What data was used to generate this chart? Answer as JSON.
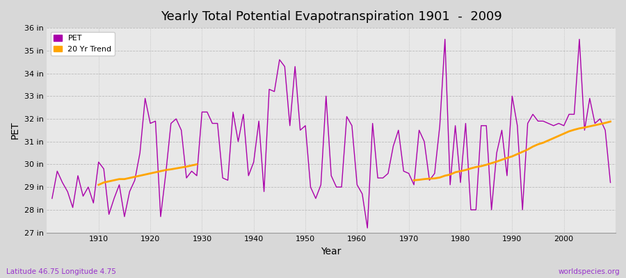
{
  "title": "Yearly Total Potential Evapotranspiration 1901  -  2009",
  "xlabel": "Year",
  "ylabel": "PET",
  "subtitle": "Latitude 46.75 Longitude 4.75",
  "watermark": "worldspecies.org",
  "ylim": [
    27,
    36
  ],
  "ytick_labels": [
    "27 in",
    "28 in",
    "29 in",
    "30 in",
    "31 in",
    "32 in",
    "33 in",
    "34 in",
    "35 in",
    "36 in"
  ],
  "ytick_values": [
    27,
    28,
    29,
    30,
    31,
    32,
    33,
    34,
    35,
    36
  ],
  "pet_color": "#AA00AA",
  "trend_color": "#FFA500",
  "fig_bg_color": "#D8D8D8",
  "plot_bg_color": "#E8E8E8",
  "years": [
    1901,
    1902,
    1903,
    1904,
    1905,
    1906,
    1907,
    1908,
    1909,
    1910,
    1911,
    1912,
    1913,
    1914,
    1915,
    1916,
    1917,
    1918,
    1919,
    1920,
    1921,
    1922,
    1923,
    1924,
    1925,
    1926,
    1927,
    1928,
    1929,
    1930,
    1931,
    1932,
    1933,
    1934,
    1935,
    1936,
    1937,
    1938,
    1939,
    1940,
    1941,
    1942,
    1943,
    1944,
    1945,
    1946,
    1947,
    1948,
    1949,
    1950,
    1951,
    1952,
    1953,
    1954,
    1955,
    1956,
    1957,
    1958,
    1959,
    1960,
    1961,
    1962,
    1963,
    1964,
    1965,
    1966,
    1967,
    1968,
    1969,
    1970,
    1971,
    1972,
    1973,
    1974,
    1975,
    1976,
    1977,
    1978,
    1979,
    1980,
    1981,
    1982,
    1983,
    1984,
    1985,
    1986,
    1987,
    1988,
    1989,
    1990,
    1991,
    1992,
    1993,
    1994,
    1995,
    1996,
    1997,
    1998,
    1999,
    2000,
    2001,
    2002,
    2003,
    2004,
    2005,
    2006,
    2007,
    2008,
    2009
  ],
  "pet_values": [
    28.5,
    29.7,
    29.2,
    28.8,
    28.1,
    29.5,
    28.6,
    29.0,
    28.3,
    30.1,
    29.8,
    27.8,
    28.5,
    29.1,
    27.7,
    28.8,
    29.3,
    30.5,
    32.9,
    31.8,
    31.9,
    27.7,
    29.6,
    31.8,
    32.0,
    31.5,
    29.4,
    29.7,
    29.5,
    32.3,
    32.3,
    31.8,
    31.8,
    29.4,
    29.3,
    32.3,
    31.0,
    32.2,
    29.5,
    30.1,
    31.9,
    28.8,
    33.3,
    33.2,
    34.6,
    34.3,
    31.7,
    34.3,
    31.5,
    31.7,
    29.0,
    28.5,
    29.1,
    33.0,
    29.5,
    29.0,
    29.0,
    32.1,
    31.7,
    29.1,
    28.7,
    27.2,
    31.8,
    29.4,
    29.4,
    29.6,
    30.8,
    31.5,
    29.7,
    29.6,
    29.1,
    31.5,
    31.0,
    29.3,
    29.6,
    31.7,
    35.5,
    29.1,
    31.7,
    29.2,
    31.8,
    28.0,
    28.0,
    31.7,
    31.7,
    28.0,
    30.5,
    31.5,
    29.5,
    33.0,
    31.7,
    28.0,
    31.8,
    32.2,
    31.9,
    31.9,
    31.8,
    31.7,
    31.8,
    31.7,
    32.2,
    32.2,
    35.5,
    31.5,
    32.9,
    31.8,
    32.0,
    31.5,
    29.2
  ],
  "trend_segment1_years": [
    1910,
    1911,
    1912,
    1913,
    1914,
    1915,
    1916,
    1917,
    1918,
    1919,
    1920,
    1921,
    1922,
    1923,
    1924,
    1925,
    1926,
    1927,
    1928,
    1929
  ],
  "trend_segment1_values": [
    29.1,
    29.2,
    29.25,
    29.3,
    29.35,
    29.35,
    29.4,
    29.45,
    29.5,
    29.55,
    29.6,
    29.65,
    29.7,
    29.75,
    29.78,
    29.82,
    29.86,
    29.9,
    29.95,
    30.0
  ],
  "trend_segment2_years": [
    1971,
    1972,
    1973,
    1974,
    1975,
    1976,
    1977,
    1978,
    1979,
    1980,
    1981,
    1982,
    1983,
    1984,
    1985,
    1986,
    1987,
    1988,
    1989,
    1990,
    1991,
    1992,
    1993,
    1994,
    1995,
    1996,
    1997,
    1998,
    1999,
    2000,
    2001,
    2002,
    2003,
    2004,
    2005,
    2006,
    2007,
    2008,
    2009
  ],
  "trend_segment2_values": [
    29.3,
    29.32,
    29.35,
    29.37,
    29.38,
    29.42,
    29.5,
    29.55,
    29.65,
    29.7,
    29.75,
    29.82,
    29.88,
    29.92,
    29.98,
    30.05,
    30.12,
    30.2,
    30.28,
    30.35,
    30.45,
    30.55,
    30.65,
    30.78,
    30.88,
    30.95,
    31.05,
    31.15,
    31.25,
    31.35,
    31.45,
    31.52,
    31.58,
    31.62,
    31.67,
    31.72,
    31.77,
    31.82,
    31.88
  ]
}
